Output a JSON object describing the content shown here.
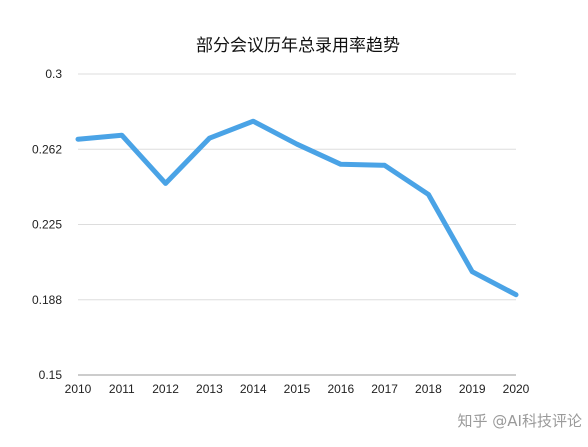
{
  "chart_data": {
    "type": "line",
    "title": "部分会议历年总录用率趋势",
    "xlabel": "",
    "ylabel": "",
    "categories": [
      "2010",
      "2011",
      "2012",
      "2013",
      "2014",
      "2015",
      "2016",
      "2017",
      "2018",
      "2019",
      "2020"
    ],
    "series": [
      {
        "values": [
          0.2675,
          0.2695,
          0.2455,
          0.268,
          0.2765,
          0.265,
          0.255,
          0.2545,
          0.24,
          0.2015,
          0.19
        ]
      }
    ],
    "ylim": [
      0.15,
      0.3
    ],
    "yticks": [
      "0.15",
      "0.188",
      "0.225",
      "0.262",
      "0.3"
    ],
    "grid": true,
    "legend": "none",
    "line_color": "#4aa3e6"
  },
  "watermark": "知乎 @AI科技评论"
}
